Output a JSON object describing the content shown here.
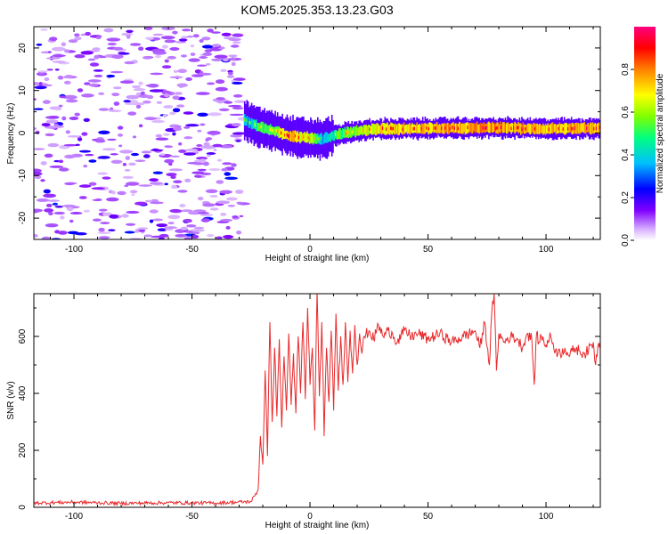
{
  "figure_title": "KOM5.2025.353.13.23.G03",
  "chart_data": [
    {
      "type": "heatmap",
      "panel": "spectrogram",
      "xlabel": "Height of straight line (km)",
      "ylabel": "Frequency (Hz)",
      "xlim": [
        -117,
        123
      ],
      "ylim": [
        -25,
        25
      ],
      "x_ticks": [
        "-100",
        "-50",
        "0",
        "50",
        "100"
      ],
      "x_tick_values": [
        -100,
        -50,
        0,
        50,
        100
      ],
      "y_ticks": [
        "20",
        "10",
        "0",
        "-10",
        "-20"
      ],
      "y_tick_values": [
        20,
        10,
        0,
        -10,
        -20
      ],
      "colorbar": {
        "label": "Normalized spectral amplitude",
        "range": [
          0,
          1
        ],
        "ticks": [
          "0.0",
          "0.2",
          "0.4",
          "0.6",
          "0.8"
        ],
        "tick_values": [
          0.0,
          0.2,
          0.4,
          0.6,
          0.8
        ],
        "colors": [
          "#ffffff",
          "#d9b3ff",
          "#8000ff",
          "#0000ff",
          "#00bfff",
          "#00ff80",
          "#80ff00",
          "#ffff00",
          "#ff8000",
          "#ff0000",
          "#ff0080"
        ]
      },
      "noise_region_x": [
        -117,
        -28
      ],
      "signal_track": {
        "x": [
          -28,
          -22,
          -15,
          -10,
          -5,
          0,
          5,
          10,
          20,
          30,
          40,
          60,
          80,
          100,
          123
        ],
        "freq_hz": [
          3,
          1.5,
          0.5,
          -0.5,
          -1.0,
          -1.2,
          -1.5,
          -0.5,
          0.5,
          1.0,
          1.0,
          1.2,
          1.2,
          1.0,
          1.2
        ],
        "amplitude": [
          0.3,
          0.5,
          0.55,
          0.75,
          0.7,
          0.65,
          0.3,
          0.5,
          0.6,
          0.7,
          0.72,
          0.75,
          0.78,
          0.72,
          0.75
        ]
      }
    },
    {
      "type": "line",
      "panel": "snr",
      "xlabel": "Height of straight line (km)",
      "ylabel": "SNR (v/v)",
      "xlim": [
        -117,
        123
      ],
      "ylim": [
        0,
        750
      ],
      "x_ticks": [
        "-100",
        "-50",
        "0",
        "50",
        "100"
      ],
      "x_tick_values": [
        -100,
        -50,
        0,
        50,
        100
      ],
      "y_ticks": [
        "0",
        "200",
        "400",
        "600"
      ],
      "y_tick_values": [
        0,
        200,
        400,
        600
      ],
      "line_color": "#e8292b",
      "series": [
        {
          "name": "SNR",
          "x": [
            -117,
            -100,
            -80,
            -60,
            -40,
            -25,
            -22,
            -21,
            -20,
            -19,
            -18,
            -17,
            -16,
            -15,
            -14,
            -13,
            -12,
            -11,
            -10,
            -9,
            -8,
            -7,
            -6,
            -5,
            -4,
            -3,
            -2,
            -1,
            0,
            1,
            2,
            3,
            4,
            5,
            6,
            7,
            8,
            9,
            10,
            11,
            12,
            13,
            14,
            15,
            16,
            17,
            18,
            19,
            20,
            21,
            22,
            23,
            25,
            27,
            29,
            31,
            33,
            35,
            37,
            40,
            43,
            46,
            50,
            55,
            60,
            65,
            70,
            72,
            74,
            76,
            77,
            78,
            79,
            80,
            82,
            85,
            88,
            90,
            92,
            94,
            95,
            96,
            97,
            98,
            100,
            102,
            104,
            106,
            108,
            110,
            112,
            114,
            116,
            118,
            120,
            121,
            122,
            123
          ],
          "y": [
            15,
            18,
            14,
            16,
            15,
            20,
            60,
            250,
            150,
            480,
            180,
            650,
            300,
            560,
            320,
            590,
            280,
            530,
            340,
            610,
            360,
            540,
            330,
            600,
            400,
            650,
            380,
            700,
            430,
            560,
            270,
            760,
            390,
            650,
            250,
            560,
            370,
            620,
            340,
            680,
            410,
            600,
            430,
            650,
            440,
            620,
            470,
            640,
            500,
            610,
            540,
            600,
            620,
            590,
            640,
            600,
            620,
            610,
            580,
            620,
            600,
            610,
            590,
            610,
            580,
            600,
            620,
            560,
            650,
            500,
            680,
            750,
            480,
            610,
            580,
            600,
            590,
            560,
            610,
            590,
            430,
            610,
            580,
            600,
            570,
            600,
            550,
            540,
            560,
            530,
            560,
            550,
            540,
            550,
            580,
            500,
            570,
            580
          ]
        }
      ]
    }
  ]
}
